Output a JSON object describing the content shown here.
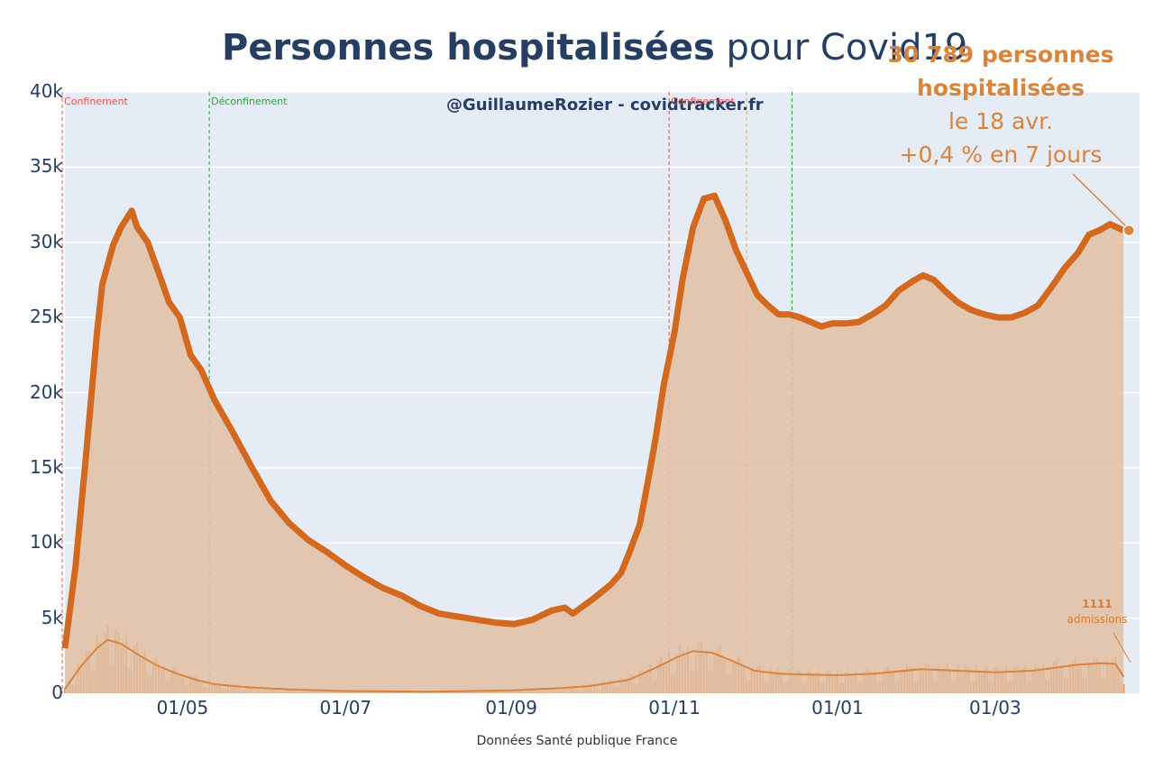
{
  "title": {
    "bold": "Personnes hospitalisées",
    "rest": " pour Covid19"
  },
  "credit": "@GuillaumeRozier - covidtracker.fr",
  "source": "Données Santé publique France",
  "annotation": {
    "count_label": "30 789 personnes",
    "label2": "hospitalisées",
    "date": "le 18 avr.",
    "change": "+0,4 % en 7 jours"
  },
  "admissions_annotation": {
    "value": "1111",
    "label": "admissions"
  },
  "colors": {
    "plot_bg": "#e5ecf6",
    "line": "#d2691e",
    "fill": "#e3bfa3",
    "admissions": "#d9843d",
    "annotation": "#d9843d",
    "title": "#263e62",
    "lockdown": "#e5534b",
    "unlock": "#2e9e3e",
    "curfew": "#e3b04a"
  },
  "events": [
    {
      "label": "Confinement",
      "date": "2020-03-17",
      "kind": "lockdown"
    },
    {
      "label": "Déconfinement",
      "date": "2020-05-11",
      "kind": "unlock"
    },
    {
      "label": "Confinement",
      "date": "2020-10-30",
      "kind": "lockdown"
    },
    {
      "label": "",
      "date": "2020-11-28",
      "kind": "curfew"
    },
    {
      "label": "",
      "date": "2020-12-15",
      "kind": "unlock"
    }
  ],
  "chart_data": {
    "type": "area",
    "xlim": [
      "2020-03-18",
      "2021-04-24"
    ],
    "ylim": [
      0,
      40000
    ],
    "y_ticks": [
      {
        "value": 0,
        "label": "0"
      },
      {
        "value": 5000,
        "label": "5k"
      },
      {
        "value": 10000,
        "label": "10k"
      },
      {
        "value": 15000,
        "label": "15k"
      },
      {
        "value": 20000,
        "label": "20k"
      },
      {
        "value": 25000,
        "label": "25k"
      },
      {
        "value": 30000,
        "label": "30k"
      },
      {
        "value": 35000,
        "label": "35k"
      },
      {
        "value": 40000,
        "label": "40k"
      }
    ],
    "x_ticks": [
      {
        "date": "2020-05-01",
        "label": "01/05"
      },
      {
        "date": "2020-07-01",
        "label": "01/07"
      },
      {
        "date": "2020-09-01",
        "label": "01/09"
      },
      {
        "date": "2020-11-01",
        "label": "01/11"
      },
      {
        "date": "2021-01-01",
        "label": "01/01"
      },
      {
        "date": "2021-03-01",
        "label": "01/03"
      }
    ],
    "grid": true,
    "series": [
      {
        "kind": "hospitalized_line",
        "points": [
          [
            "2020-03-18",
            3000
          ],
          [
            "2020-03-22",
            8500
          ],
          [
            "2020-03-26",
            16000
          ],
          [
            "2020-03-30",
            24000
          ],
          [
            "2020-04-01",
            27200
          ],
          [
            "2020-04-05",
            29800
          ],
          [
            "2020-04-08",
            31000
          ],
          [
            "2020-04-12",
            32100
          ],
          [
            "2020-04-14",
            31000
          ],
          [
            "2020-04-18",
            30000
          ],
          [
            "2020-04-22",
            28000
          ],
          [
            "2020-04-26",
            26000
          ],
          [
            "2020-04-30",
            25000
          ],
          [
            "2020-05-04",
            22500
          ],
          [
            "2020-05-08",
            21500
          ],
          [
            "2020-05-13",
            19500
          ],
          [
            "2020-05-20",
            17300
          ],
          [
            "2020-05-27",
            15000
          ],
          [
            "2020-06-03",
            12800
          ],
          [
            "2020-06-10",
            11300
          ],
          [
            "2020-06-17",
            10200
          ],
          [
            "2020-06-24",
            9400
          ],
          [
            "2020-07-01",
            8500
          ],
          [
            "2020-07-08",
            7700
          ],
          [
            "2020-07-15",
            7000
          ],
          [
            "2020-07-22",
            6500
          ],
          [
            "2020-07-29",
            5800
          ],
          [
            "2020-08-05",
            5300
          ],
          [
            "2020-08-12",
            5100
          ],
          [
            "2020-08-19",
            4900
          ],
          [
            "2020-08-26",
            4700
          ],
          [
            "2020-09-02",
            4600
          ],
          [
            "2020-09-09",
            4900
          ],
          [
            "2020-09-16",
            5500
          ],
          [
            "2020-09-21",
            5700
          ],
          [
            "2020-09-24",
            5300
          ],
          [
            "2020-10-01",
            6200
          ],
          [
            "2020-10-08",
            7200
          ],
          [
            "2020-10-12",
            8000
          ],
          [
            "2020-10-15",
            9300
          ],
          [
            "2020-10-19",
            11200
          ],
          [
            "2020-10-22",
            14000
          ],
          [
            "2020-10-25",
            17000
          ],
          [
            "2020-10-28",
            20500
          ],
          [
            "2020-11-01",
            24000
          ],
          [
            "2020-11-04",
            27500
          ],
          [
            "2020-11-08",
            31000
          ],
          [
            "2020-11-12",
            32900
          ],
          [
            "2020-11-16",
            33100
          ],
          [
            "2020-11-20",
            31500
          ],
          [
            "2020-11-24",
            29500
          ],
          [
            "2020-11-28",
            28000
          ],
          [
            "2020-12-02",
            26500
          ],
          [
            "2020-12-06",
            25800
          ],
          [
            "2020-12-10",
            25200
          ],
          [
            "2020-12-14",
            25200
          ],
          [
            "2020-12-18",
            25000
          ],
          [
            "2020-12-22",
            24700
          ],
          [
            "2020-12-26",
            24400
          ],
          [
            "2020-12-30",
            24600
          ],
          [
            "2021-01-04",
            24600
          ],
          [
            "2021-01-09",
            24700
          ],
          [
            "2021-01-14",
            25200
          ],
          [
            "2021-01-19",
            25800
          ],
          [
            "2021-01-24",
            26800
          ],
          [
            "2021-01-29",
            27400
          ],
          [
            "2021-02-02",
            27800
          ],
          [
            "2021-02-06",
            27500
          ],
          [
            "2021-02-10",
            26800
          ],
          [
            "2021-02-15",
            26000
          ],
          [
            "2021-02-20",
            25500
          ],
          [
            "2021-02-25",
            25200
          ],
          [
            "2021-03-02",
            25000
          ],
          [
            "2021-03-07",
            25000
          ],
          [
            "2021-03-12",
            25300
          ],
          [
            "2021-03-17",
            25800
          ],
          [
            "2021-03-22",
            27000
          ],
          [
            "2021-03-27",
            28300
          ],
          [
            "2021-04-01",
            29300
          ],
          [
            "2021-04-05",
            30500
          ],
          [
            "2021-04-09",
            30800
          ],
          [
            "2021-04-13",
            31200
          ],
          [
            "2021-04-18",
            30789
          ]
        ]
      },
      {
        "kind": "admissions_smoothed",
        "points": [
          [
            "2020-03-18",
            300
          ],
          [
            "2020-03-24",
            1800
          ],
          [
            "2020-03-30",
            3000
          ],
          [
            "2020-04-03",
            3550
          ],
          [
            "2020-04-08",
            3300
          ],
          [
            "2020-04-15",
            2500
          ],
          [
            "2020-04-22",
            1800
          ],
          [
            "2020-04-29",
            1300
          ],
          [
            "2020-05-06",
            900
          ],
          [
            "2020-05-13",
            600
          ],
          [
            "2020-05-25",
            400
          ],
          [
            "2020-06-10",
            250
          ],
          [
            "2020-07-01",
            150
          ],
          [
            "2020-08-01",
            100
          ],
          [
            "2020-09-01",
            200
          ],
          [
            "2020-09-20",
            350
          ],
          [
            "2020-10-01",
            500
          ],
          [
            "2020-10-15",
            900
          ],
          [
            "2020-10-25",
            1700
          ],
          [
            "2020-11-02",
            2400
          ],
          [
            "2020-11-08",
            2800
          ],
          [
            "2020-11-15",
            2700
          ],
          [
            "2020-11-22",
            2200
          ],
          [
            "2020-12-01",
            1500
          ],
          [
            "2020-12-10",
            1300
          ],
          [
            "2020-12-20",
            1250
          ],
          [
            "2021-01-01",
            1200
          ],
          [
            "2021-01-15",
            1300
          ],
          [
            "2021-02-01",
            1600
          ],
          [
            "2021-02-15",
            1500
          ],
          [
            "2021-03-01",
            1400
          ],
          [
            "2021-03-15",
            1500
          ],
          [
            "2021-04-01",
            1900
          ],
          [
            "2021-04-10",
            2000
          ],
          [
            "2021-04-15",
            1950
          ],
          [
            "2021-04-18",
            1111
          ]
        ]
      }
    ]
  }
}
